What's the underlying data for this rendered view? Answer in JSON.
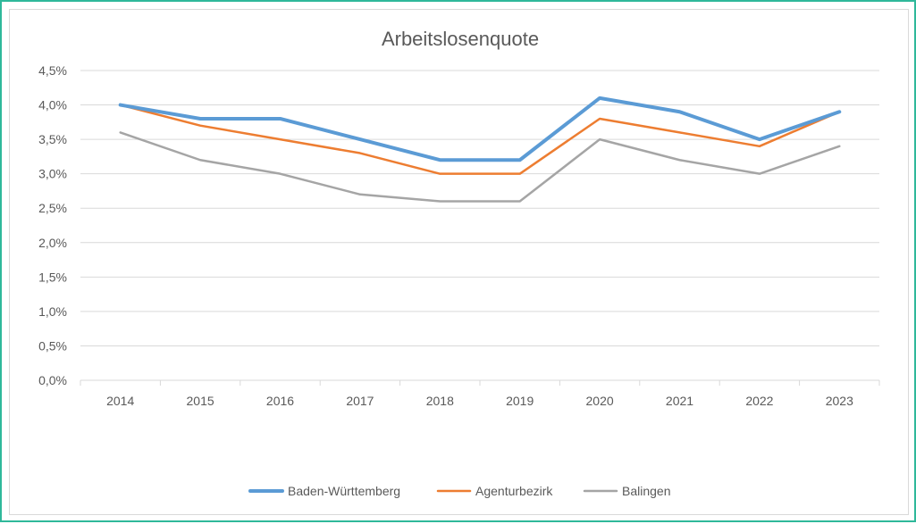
{
  "chart_data": {
    "type": "line",
    "title": "Arbeitslosenquote",
    "xlabel": "",
    "ylabel": "",
    "x": [
      "2014",
      "2015",
      "2016",
      "2017",
      "2018",
      "2019",
      "2020",
      "2021",
      "2022",
      "2023"
    ],
    "y_ticks": [
      "0,0%",
      "0,5%",
      "1,0%",
      "1,5%",
      "2,0%",
      "2,5%",
      "3,0%",
      "3,5%",
      "4,0%",
      "4,5%"
    ],
    "ylim": [
      0,
      4.5
    ],
    "grid": true,
    "legend_position": "bottom",
    "series": [
      {
        "name": "Baden-Württemberg",
        "color": "#5b9bd5",
        "values": [
          4.0,
          3.8,
          3.8,
          3.5,
          3.2,
          3.2,
          4.1,
          3.9,
          3.5,
          3.9
        ]
      },
      {
        "name": "Agenturbezirk",
        "color": "#ed7d31",
        "values": [
          4.0,
          3.7,
          3.5,
          3.3,
          3.0,
          3.0,
          3.8,
          3.6,
          3.4,
          3.9
        ]
      },
      {
        "name": "Balingen",
        "color": "#a5a5a5",
        "values": [
          3.6,
          3.2,
          3.0,
          2.7,
          2.6,
          2.6,
          3.5,
          3.2,
          3.0,
          3.4
        ]
      }
    ]
  }
}
